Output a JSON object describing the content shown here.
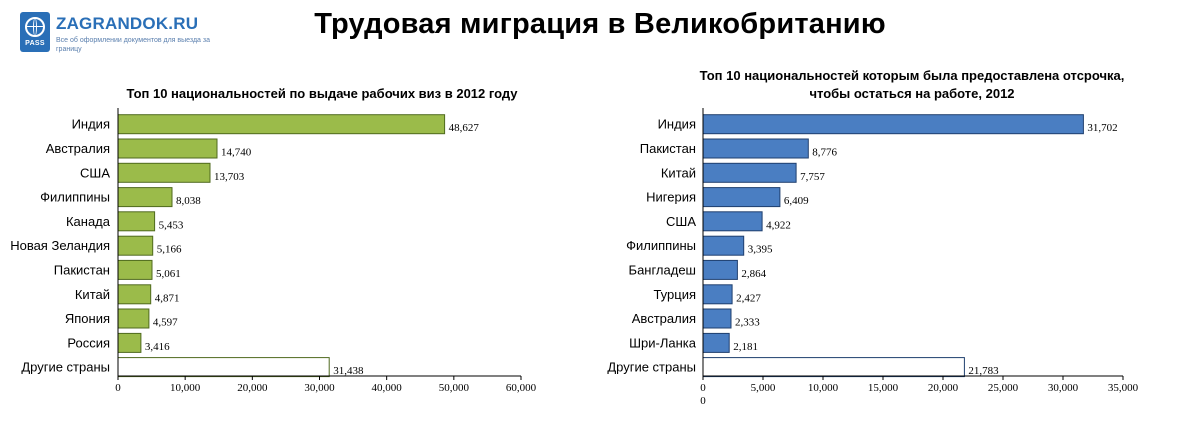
{
  "header": {
    "title": "Трудовая миграция в Великобританию",
    "logo_name": "ZAGRANDOK.RU",
    "logo_tagline": "Все об оформлении документов для выезда за границу",
    "logo_badge_text": "PASS"
  },
  "chart_data": [
    {
      "type": "bar",
      "orientation": "horizontal",
      "title": "Топ 10 национальностей по выдаче рабочих виз в 2012 году",
      "categories": [
        "Индия",
        "Австралия",
        "США",
        "Филиппины",
        "Канада",
        "Новая Зеландия",
        "Пакистан",
        "Китай",
        "Япония",
        "Россия",
        "Другие страны"
      ],
      "values": [
        48627,
        14740,
        13703,
        8038,
        5453,
        5166,
        5061,
        4871,
        4597,
        3416,
        31438
      ],
      "value_labels": [
        "48,627",
        "14,740",
        "13,703",
        "8,038",
        "5,453",
        "5,166",
        "5,061",
        "4,871",
        "4,597",
        "3,416",
        "31,438"
      ],
      "xlim": [
        0,
        60000
      ],
      "ticks": [
        0,
        10000,
        20000,
        30000,
        40000,
        50000,
        60000
      ],
      "tick_labels": [
        "0",
        "10,000",
        "20,000",
        "30,000",
        "40,000",
        "50,000",
        "60,000"
      ],
      "bar_color": "#9bbb4a",
      "bar_edge": "#4f6a1e",
      "other_color": "#ffffff",
      "grid": false
    },
    {
      "type": "bar",
      "orientation": "horizontal",
      "title_lines": [
        "Топ 10 национальностей которым была предоставлена отсрочка,",
        "чтобы остаться на работе, 2012"
      ],
      "categories": [
        "Индия",
        "Пакистан",
        "Китай",
        "Нигерия",
        "США",
        "Филиппины",
        "Бангладеш",
        "Турция",
        "Австралия",
        "Шри-Ланка",
        "Другие страны"
      ],
      "values": [
        31702,
        8776,
        7757,
        6409,
        4922,
        3395,
        2864,
        2427,
        2333,
        2181,
        21783
      ],
      "value_labels": [
        "31,702",
        "8,776",
        "7,757",
        "6,409",
        "4,922",
        "3,395",
        "2,864",
        "2,427",
        "2,333",
        "2,181",
        "21,783"
      ],
      "xlim": [
        0,
        35000
      ],
      "ticks": [
        0,
        5000,
        10000,
        15000,
        20000,
        25000,
        30000,
        35000
      ],
      "tick_labels": [
        "0",
        "5,000",
        "10,000",
        "15,000",
        "20,000",
        "25,000",
        "30,000",
        "35,000"
      ],
      "extra_zero_label": "0",
      "bar_color": "#4a7ec2",
      "bar_edge": "#1f3f6e",
      "other_color": "#ffffff",
      "grid": false
    }
  ]
}
